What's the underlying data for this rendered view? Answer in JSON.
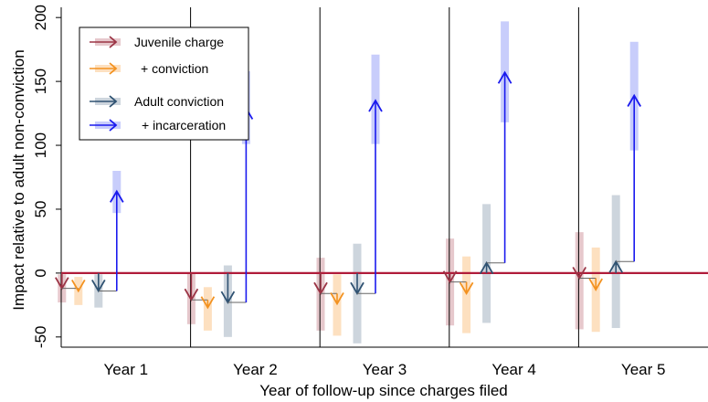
{
  "chart_data": {
    "type": "arrow-interval",
    "ylabel": "Impact relative to adult non-conviction",
    "xlabel": "Year of follow-up since charges filed",
    "ylim": [
      -58,
      208
    ],
    "yticks": [
      -50,
      0,
      50,
      100,
      150,
      200
    ],
    "reference_line": 0,
    "categories": [
      "Year 1",
      "Year 2",
      "Year 3",
      "Year 4",
      "Year 5"
    ],
    "legend": {
      "placement": "top-left",
      "entries": [
        "Juvenile charge",
        "+ conviction",
        "Adult conviction",
        "+ incarceration"
      ]
    },
    "series": [
      {
        "name": "Juvenile charge",
        "color": "#9b3445",
        "ci_color": "#e6c8cc",
        "base": [
          0,
          0,
          0,
          0,
          0
        ],
        "values": [
          -12,
          -21,
          -16,
          -7,
          -4
        ],
        "ci_low": [
          -23,
          -40,
          -45,
          -41,
          -44
        ],
        "ci_high": [
          -1,
          0,
          12,
          27,
          32
        ]
      },
      {
        "name": "+ conviction",
        "color": "#f39220",
        "ci_color": "#fde0c0",
        "base": [
          -12,
          -21,
          -16,
          -7,
          -4
        ],
        "values": [
          -14,
          -27,
          -24,
          -16,
          -13
        ],
        "ci_low": [
          -25,
          -45,
          -49,
          -47,
          -46
        ],
        "ci_high": [
          -3,
          -11,
          -1,
          13,
          20
        ]
      },
      {
        "name": "Adult conviction",
        "color": "#2f5272",
        "ci_color": "#cdd5dd",
        "base": [
          0,
          0,
          0,
          0,
          0
        ],
        "values": [
          -14,
          -23,
          -16,
          8,
          9
        ],
        "ci_low": [
          -27,
          -50,
          -55,
          -39,
          -43
        ],
        "ci_high": [
          -1,
          6,
          23,
          54,
          61
        ]
      },
      {
        "name": "+ incarceration",
        "color": "#1a1aee",
        "ci_color": "#c8cdfb",
        "base": [
          -14,
          -23,
          -16,
          8,
          9
        ],
        "values": [
          64,
          129,
          135,
          157,
          139
        ],
        "ci_low": [
          47,
          101,
          101,
          118,
          96
        ],
        "ci_high": [
          80,
          158,
          171,
          197,
          181
        ]
      }
    ]
  }
}
